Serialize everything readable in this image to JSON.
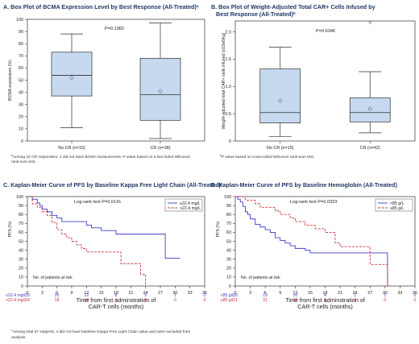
{
  "colors": {
    "box_fill": "#c6d9ef",
    "box_stroke": "#2f2f2f",
    "curve_blue": "#3c3cc8",
    "curve_red": "#c8323c",
    "title": "#1f3864"
  },
  "panels": {
    "A": {
      "title_line1": "A. Box Plot of BCMA Expression Level by Best Response (All-Treated)",
      "title_sup": "a",
      "pvalue": "P=0.1982",
      "footnote_sup": "a",
      "footnote_line1": "Among 42 CR responders, 4 did not have BCMA measurement. P value based on a two-sided Wilcoxon",
      "footnote_line2": "rank-sum test."
    },
    "B": {
      "title_line1": "B. Box Plot of Weight-Adjusted Total CAR+ Cells Infused by",
      "title_line2": "Best Response (All-Treated)",
      "title_sup": "b",
      "pvalue": "P=0.6346",
      "footnote_sup": "b",
      "footnote_line1": "P value based on a two-sided Wilcoxon rank-sum test."
    },
    "C": {
      "title_line1": "C. Kaplan-Meier Curve of PFS by Baseline Kappa Free Light Chain (All-Treated)",
      "title_sup": "c",
      "logrank": "Log-rank test P=0.0141",
      "risk_title": "No. of patients at risk",
      "footnote_sup": "c",
      "footnote_line1": "Among total 57 subjects, 4 did not have baseline Kappa Free Light Chain value and were excluded from",
      "footnote_line2": "analysis."
    },
    "D": {
      "title_line1": "D. Kaplan-Meier Curve of PFS by Baseline Hemoglobin (All-Treated)",
      "logrank": "Log-rank test P=0.0323",
      "risk_title": "No. of patients at risk"
    }
  },
  "chart_data": [
    {
      "panel": "A",
      "type": "box",
      "ylabel": "BCMA expression (%)",
      "ylim": [
        0,
        100
      ],
      "yticks": [
        "0",
        "10",
        "20",
        "30",
        "40",
        "50",
        "60",
        "70",
        "80",
        "90",
        "100"
      ],
      "categories": [
        "No CR (n=15)",
        "CR (n=38)"
      ],
      "boxes": [
        {
          "min": 11,
          "q1": 37,
          "median": 54,
          "q3": 73,
          "max": 88,
          "mean": 52
        },
        {
          "min": 2,
          "q1": 17,
          "median": 38,
          "q3": 68,
          "max": 97,
          "mean": 41
        }
      ],
      "grid": false
    },
    {
      "panel": "B",
      "type": "box",
      "ylabel": "Weight-adjusted total CAR+ cells infused (x10e6/kg)",
      "ylim": [
        0,
        2.2
      ],
      "yticks": [
        "0",
        "0.5",
        "1.0",
        "1.5",
        "2.0"
      ],
      "categories": [
        "No CR (n=15)",
        "CR (n=42)"
      ],
      "boxes": [
        {
          "min": 0.08,
          "q1": 0.33,
          "median": 0.52,
          "q3": 1.32,
          "max": 1.72,
          "mean": 0.74
        },
        {
          "min": 0.15,
          "q1": 0.35,
          "median": 0.52,
          "q3": 0.79,
          "max": 1.27,
          "mean": 0.59,
          "outliers": [
            2.17
          ]
        }
      ],
      "grid": false
    },
    {
      "panel": "C",
      "type": "line",
      "xlabel": "Time from first adminstration of CAR-T cells (months)",
      "ylabel": "PFS (%)",
      "xlim": [
        0,
        36
      ],
      "ylim": [
        0,
        100
      ],
      "xticks": [
        "0",
        "3",
        "6",
        "9",
        "12",
        "15",
        "18",
        "21",
        "24",
        "27",
        "30",
        "33",
        "36"
      ],
      "yticks": [
        "0",
        "10",
        "20",
        "30",
        "40",
        "50",
        "60",
        "70",
        "80",
        "90",
        "100"
      ],
      "legend_position": "top-right",
      "series": [
        {
          "name": "≤22.4 mg/L",
          "color": "#3c3cc8",
          "dash": false,
          "x": [
            0,
            1,
            2,
            2.5,
            3,
            4,
            5,
            6,
            7,
            9,
            12,
            13,
            14,
            15,
            17,
            18,
            19,
            21,
            24,
            28,
            30,
            31
          ],
          "y": [
            100,
            97,
            93,
            90,
            86,
            83,
            79,
            76,
            72,
            72,
            68,
            65,
            65,
            62,
            62,
            58,
            58,
            58,
            58,
            31,
            31,
            31
          ]
        },
        {
          "name": ">22.4 mg/L",
          "color": "#c8323c",
          "dash": true,
          "x": [
            0,
            1,
            2,
            3,
            4,
            5,
            6,
            7,
            8,
            9,
            10,
            11,
            12,
            13,
            15,
            18,
            19,
            21,
            23,
            24
          ],
          "y": [
            100,
            92,
            88,
            83,
            79,
            71,
            63,
            58,
            54,
            50,
            46,
            42,
            38,
            38,
            38,
            38,
            25,
            25,
            13,
            0
          ]
        }
      ],
      "risk_table": {
        "times": [
          "0",
          "3",
          "6",
          "9",
          "12",
          "15",
          "18",
          "21",
          "24",
          "27",
          "30",
          "33",
          "36"
        ],
        "rows": [
          {
            "label": "≤22.4 mg/L",
            "color": "#3c3cc8",
            "counts": [
              "29",
              "",
              "26",
              "",
              "22",
              "",
              "8",
              "",
              "5",
              "",
              "1",
              "",
              "0"
            ]
          },
          {
            "label": ">22.4 mg/L",
            "color": "#c8323c",
            "counts": [
              "24",
              "",
              "18",
              "",
              "10",
              "",
              "4",
              "",
              "0",
              "",
              "0",
              "",
              "0"
            ]
          }
        ]
      }
    },
    {
      "panel": "D",
      "type": "line",
      "xlabel": "Time from first adminstration of CAR-T cells (months)",
      "ylabel": "PFS (%)",
      "xlim": [
        0,
        36
      ],
      "ylim": [
        0,
        100
      ],
      "xticks": [
        "0",
        "3",
        "6",
        "9",
        "12",
        "15",
        "18",
        "21",
        "24",
        "27",
        "30",
        "33",
        "36"
      ],
      "yticks": [
        "0",
        "10",
        "20",
        "30",
        "40",
        "50",
        "60",
        "70",
        "80",
        "90",
        "100"
      ],
      "legend_position": "top-right",
      "series": [
        {
          "name": "<85 g/L",
          "color": "#3c3cc8",
          "dash": false,
          "x": [
            0,
            0.5,
            1,
            1.5,
            2,
            2.5,
            3,
            4,
            5,
            6,
            7,
            8,
            9,
            10,
            11,
            12,
            14,
            15,
            16,
            18,
            21,
            24,
            27,
            29,
            30.5
          ],
          "y": [
            100,
            97,
            94,
            89,
            83,
            80,
            75,
            69,
            66,
            63,
            60,
            54,
            51,
            48,
            45,
            42,
            40,
            37,
            37,
            37,
            37,
            37,
            37,
            37,
            0
          ]
        },
        {
          "name": "≥85 g/L",
          "color": "#c8323c",
          "dash": true,
          "x": [
            0,
            1,
            2,
            3,
            4,
            5,
            6,
            7,
            8,
            9,
            10,
            11,
            12,
            13,
            14,
            15,
            16,
            17,
            18,
            19,
            20,
            21,
            24,
            27,
            29,
            30.5
          ],
          "y": [
            100,
            100,
            96,
            96,
            92,
            88,
            88,
            88,
            84,
            80,
            80,
            76,
            72,
            72,
            68,
            68,
            64,
            64,
            60,
            60,
            48,
            44,
            44,
            24,
            24,
            0
          ]
        }
      ],
      "risk_table": {
        "times": [
          "0",
          "3",
          "6",
          "9",
          "12",
          "15",
          "18",
          "21",
          "24",
          "27",
          "30",
          "33",
          "36"
        ],
        "rows": [
          {
            "label": "<85 g/L",
            "color": "#3c3cc8",
            "counts": [
              "30",
              "",
              "19",
              "",
              "10",
              "",
              "4",
              "",
              "2",
              "",
              "1",
              "",
              "0"
            ]
          },
          {
            "label": "≥85 g/L",
            "color": "#c8323c",
            "counts": [
              "21",
              "",
              "21",
              "",
              "20",
              "",
              "8",
              "",
              "4",
              "",
              "0",
              "",
              "0"
            ]
          }
        ]
      }
    }
  ]
}
